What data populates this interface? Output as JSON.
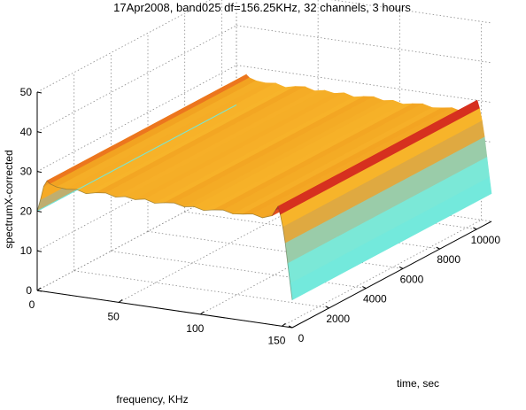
{
  "chart_data": {
    "type": "surface3d",
    "title": "17Apr2008, band025  df=156.25KHz, 32 channels, 3 hours",
    "xlabel": "frequency, KHz",
    "ylabel": "time, sec",
    "zlabel": "spectrumX-corrected",
    "xlim": [
      0,
      156.25
    ],
    "ylim": [
      0,
      10800
    ],
    "zlim": [
      0,
      50
    ],
    "xticks": [
      0,
      50,
      100,
      150
    ],
    "yticks": [
      0,
      2000,
      4000,
      6000,
      8000,
      10000
    ],
    "zticks": [
      0,
      10,
      20,
      30,
      40,
      50
    ],
    "grid": true,
    "colormap": "jet",
    "surface_profile": {
      "frequency_khz": [
        0,
        2,
        4,
        6,
        8,
        12,
        18,
        24,
        30,
        36,
        42,
        48,
        54,
        60,
        66,
        72,
        78,
        84,
        90,
        96,
        102,
        108,
        114,
        120,
        126,
        132,
        138,
        144,
        146,
        147.5,
        149,
        150.5,
        152,
        153.5,
        155,
        156.25
      ],
      "value": [
        20,
        23,
        26.5,
        28,
        27.3,
        26.8,
        26.6,
        26.9,
        26.2,
        26.8,
        27.1,
        26.4,
        26.9,
        26.5,
        27.0,
        26.3,
        26.8,
        27.1,
        26.5,
        26.9,
        26.3,
        26.8,
        27.1,
        26.5,
        26.8,
        27.2,
        26.6,
        27.5,
        29,
        30,
        28,
        25,
        21,
        16,
        11,
        7
      ]
    }
  }
}
